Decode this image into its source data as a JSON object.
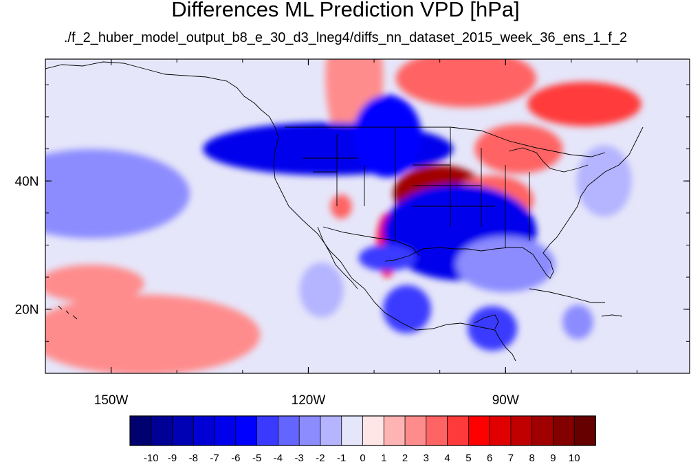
{
  "title": "Differences ML Prediction VPD [hPa]",
  "subtitle": "./f_2_huber_model_output_b8_e_30_d3_lneg4/diffs_nn_dataset_2015_week_36_ens_1_f_2",
  "map": {
    "lon_range": [
      -160,
      -62
    ],
    "lat_range": [
      10,
      59
    ],
    "lon_ticks": [
      {
        "value": -150,
        "label": "150W"
      },
      {
        "value": -120,
        "label": "120W"
      },
      {
        "value": -90,
        "label": "90W"
      }
    ],
    "lat_ticks": [
      {
        "value": 40,
        "label": "40N"
      },
      {
        "value": 20,
        "label": "20N"
      }
    ]
  },
  "colorbar": {
    "labels": [
      "-10",
      "-9",
      "-8",
      "-7",
      "-6",
      "-5",
      "-4",
      "-3",
      "-2",
      "-1",
      "0",
      "1",
      "2",
      "3",
      "4",
      "5",
      "6",
      "7",
      "8",
      "9",
      "10"
    ],
    "colors": [
      "#00006e",
      "#000094",
      "#0000b4",
      "#0000d4",
      "#0000ec",
      "#0000ff",
      "#3a3aff",
      "#6464ff",
      "#8c8cff",
      "#b4b4ff",
      "#e6e6fa",
      "#ffe6e6",
      "#ffb4b4",
      "#ff8c8c",
      "#ff6464",
      "#ff3a3a",
      "#ff0000",
      "#e00000",
      "#c00000",
      "#a00000",
      "#820000",
      "#660000"
    ]
  },
  "chart_data": {
    "type": "heatmap",
    "title": "Differences ML Prediction VPD [hPa]",
    "subtitle": "./f_2_huber_model_output_b8_e_30_d3_lneg4/diffs_nn_dataset_2015_week_36_ens_1_f_2",
    "colorbar_levels": [
      -10,
      -9,
      -8,
      -7,
      -6,
      -5,
      -4,
      -3,
      -2,
      -1,
      0,
      1,
      2,
      3,
      4,
      5,
      6,
      7,
      8,
      9,
      10
    ],
    "regions": [
      {
        "lon": -100,
        "lat": 38,
        "value": 8
      },
      {
        "lon": -92,
        "lat": 37,
        "value": 3
      },
      {
        "lon": -108,
        "lat": 30,
        "value": 5
      },
      {
        "lon": -115,
        "lat": 36,
        "value": 3
      },
      {
        "lon": -88,
        "lat": 45,
        "value": 3
      },
      {
        "lon": -78,
        "lat": 52,
        "value": 4
      },
      {
        "lon": -96,
        "lat": 56,
        "value": 3
      },
      {
        "lon": -113,
        "lat": 56,
        "value": 2
      },
      {
        "lon": -117,
        "lat": 45,
        "value": -7
      },
      {
        "lon": -108,
        "lat": 47,
        "value": -6
      },
      {
        "lon": -97,
        "lat": 32,
        "value": -7
      },
      {
        "lon": -108,
        "lat": 28,
        "value": -5
      },
      {
        "lon": -90,
        "lat": 27,
        "value": -3
      },
      {
        "lon": -105,
        "lat": 20,
        "value": -5
      },
      {
        "lon": -92,
        "lat": 17,
        "value": -5
      },
      {
        "lon": -79,
        "lat": 18,
        "value": -3
      },
      {
        "lon": -153,
        "lat": 38,
        "value": -3
      },
      {
        "lon": -118,
        "lat": 23,
        "value": -2
      },
      {
        "lon": -145,
        "lat": 16,
        "value": 2
      },
      {
        "lon": -153,
        "lat": 24,
        "value": 2
      },
      {
        "lon": -75,
        "lat": 40,
        "value": -2
      }
    ]
  }
}
